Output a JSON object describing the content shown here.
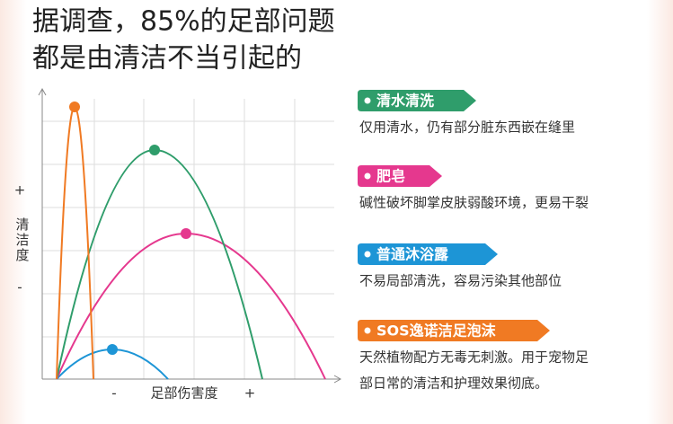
{
  "header": {
    "title_lines": [
      "据调查，85%的足部问题",
      "都是由清洁不当引起的"
    ]
  },
  "diagram": {
    "y_axis": {
      "plus": "+",
      "label": "清洁度",
      "minus": "-"
    },
    "x_axis": {
      "minus": "-",
      "label": "足部伤害度",
      "plus": "+"
    }
  },
  "items": [
    {
      "label": "清水清洗",
      "color": "#2f9d6b",
      "description": [
        "仅用清水，仍有部分脏东西嵌在缝里"
      ]
    },
    {
      "label": "肥皂",
      "color": "#e5388e",
      "description": [
        "碱性破坏脚掌皮肤弱酸环境，更易干裂"
      ]
    },
    {
      "label": "普通沐浴露",
      "color": "#1d95d6",
      "description": [
        "不易局部清洗，容易污染其他部位"
      ]
    },
    {
      "label": "SOS逸诺洁足泡沫",
      "color": "#f07a23",
      "description": [
        "天然植物配方无毒无刺激。用于宠物足",
        "部日常的清洁和护理效果彻底。"
      ]
    }
  ]
}
